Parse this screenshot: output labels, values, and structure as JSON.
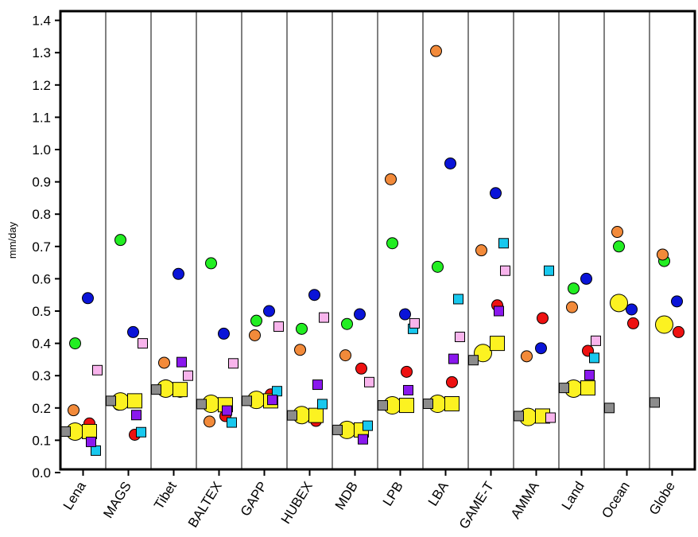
{
  "chart_data": {
    "type": "scatter",
    "title": "",
    "xlabel": "",
    "ylabel": "mm/day",
    "ylim": [
      0.0,
      1.4
    ],
    "yticks": [
      "0.0",
      "0.1",
      "0.2",
      "0.3",
      "0.4",
      "0.5",
      "0.6",
      "0.7",
      "0.8",
      "0.9",
      "1.0",
      "1.1",
      "1.2",
      "1.3",
      "1.4"
    ],
    "grid": "vertical separators between categories",
    "categories": [
      "Lena",
      "MAGS",
      "Tibet",
      "BALTEX",
      "GAPP",
      "HUBEX",
      "MDB",
      "LPB",
      "LBA",
      "GAME-T",
      "AMMA",
      "Land",
      "Ocean",
      "Globe"
    ],
    "colors": {
      "blue": "#0a14d8",
      "green": "#22ee22",
      "orange": "#f28a3a",
      "red": "#ee1111",
      "yellow": "#fcf221",
      "gray": "#8c8c8c",
      "cyan": "#18c8ee",
      "purple": "#8a18ee",
      "pink": "#f8b4ec"
    },
    "series": [
      {
        "marker": "circle",
        "color": "blue",
        "values": [
          0.54,
          0.435,
          0.615,
          0.43,
          0.5,
          0.55,
          0.49,
          0.49,
          0.957,
          0.865,
          0.385,
          0.6,
          0.505,
          0.53
        ]
      },
      {
        "marker": "circle",
        "color": "green",
        "values": [
          0.4,
          0.72,
          0.27,
          0.648,
          0.47,
          0.445,
          0.46,
          0.71,
          0.637,
          null,
          0.172,
          0.57,
          0.7,
          0.655
        ]
      },
      {
        "marker": "circle",
        "color": "orange",
        "values": [
          0.193,
          0.21,
          0.34,
          0.158,
          0.425,
          0.38,
          0.363,
          0.908,
          1.305,
          0.688,
          0.36,
          0.512,
          0.745,
          0.675
        ]
      },
      {
        "marker": "circle",
        "color": "red",
        "values": [
          0.152,
          0.117,
          0.25,
          0.175,
          0.242,
          0.16,
          0.322,
          0.312,
          0.28,
          0.518,
          0.478,
          0.377,
          0.462,
          0.435
        ]
      },
      {
        "marker": "circle",
        "color": "yellow",
        "size": "large",
        "values": [
          0.127,
          0.22,
          0.26,
          0.213,
          0.225,
          0.178,
          0.132,
          0.208,
          0.213,
          0.37,
          0.172,
          0.26,
          0.525,
          0.458
        ]
      },
      {
        "marker": "square",
        "color": "gray",
        "values": [
          0.127,
          0.222,
          0.257,
          0.212,
          0.222,
          0.177,
          0.132,
          0.208,
          0.213,
          0.348,
          0.175,
          0.262,
          0.2,
          0.217
        ]
      },
      {
        "marker": "square",
        "color": "yellow",
        "size": "large",
        "values": [
          0.127,
          0.222,
          0.257,
          0.21,
          0.222,
          0.177,
          0.132,
          0.208,
          0.213,
          0.4,
          0.175,
          0.262,
          null,
          null
        ]
      },
      {
        "marker": "square",
        "color": "cyan",
        "values": [
          0.068,
          0.125,
          null,
          0.155,
          0.252,
          0.212,
          0.145,
          0.445,
          0.537,
          0.71,
          0.625,
          0.355,
          null,
          null
        ]
      },
      {
        "marker": "square",
        "color": "purple",
        "values": [
          0.095,
          0.178,
          0.342,
          0.192,
          0.225,
          0.272,
          0.103,
          0.255,
          0.352,
          0.5,
          null,
          0.302,
          null,
          null
        ]
      },
      {
        "marker": "square",
        "color": "pink",
        "values": [
          0.317,
          0.4,
          0.3,
          0.338,
          0.452,
          0.48,
          0.28,
          0.462,
          0.42,
          0.625,
          0.17,
          0.408,
          null,
          null
        ]
      }
    ]
  }
}
